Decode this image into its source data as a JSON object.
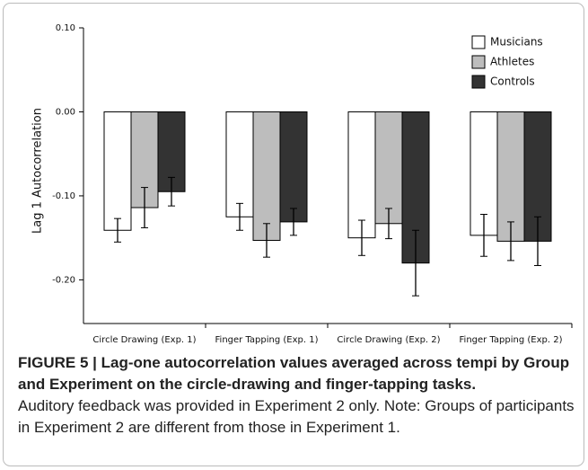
{
  "chart_data": {
    "type": "bar",
    "ylabel": "Lag 1 Autocorrelation",
    "categories": [
      "Circle Drawing (Exp. 1)",
      "Finger Tapping (Exp. 1)",
      "Circle Drawing (Exp. 2)",
      "Finger Tapping (Exp. 2)"
    ],
    "series": [
      {
        "name": "Musicians",
        "color": "#ffffff",
        "values": [
          -0.141,
          -0.125,
          -0.15,
          -0.147
        ],
        "errors": [
          0.014,
          0.016,
          0.021,
          0.025
        ]
      },
      {
        "name": "Athletes",
        "color": "#bdbdbd",
        "values": [
          -0.114,
          -0.153,
          -0.133,
          -0.154
        ],
        "errors": [
          0.024,
          0.02,
          0.018,
          0.023
        ]
      },
      {
        "name": "Controls",
        "color": "#333333",
        "values": [
          -0.095,
          -0.131,
          -0.18,
          -0.154
        ],
        "errors": [
          0.017,
          0.016,
          0.039,
          0.029
        ]
      }
    ],
    "ylim": [
      -0.252,
      0.1
    ],
    "yticks": [
      {
        "value": 0.1,
        "label": "0.10"
      },
      {
        "value": 0,
        "label": "0.00"
      },
      {
        "value": -0.1,
        "label": "-0.10"
      },
      {
        "value": -0.2,
        "label": "-0.20"
      }
    ],
    "legend": "top-right"
  },
  "caption": {
    "title": "FIGURE 5 | Lag-one autocorrelation values averaged across tempi by Group and Experiment on the circle-drawing and finger-tapping tasks.",
    "text": "Auditory feedback was provided in Experiment 2 only. Note: Groups of participants in Experiment 2 are different from those in Experiment 1."
  }
}
